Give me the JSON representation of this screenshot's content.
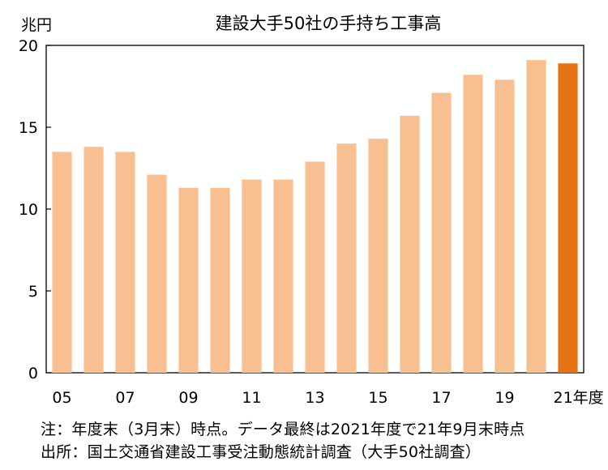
{
  "chart_data": {
    "type": "bar",
    "title": "建設大手50社の手持ち工事高",
    "unit_label": "兆円",
    "categories": [
      "05",
      "06",
      "07",
      "08",
      "09",
      "10",
      "11",
      "12",
      "13",
      "14",
      "15",
      "16",
      "17",
      "18",
      "19",
      "20",
      "21"
    ],
    "tick_labels": [
      "05",
      "07",
      "09",
      "11",
      "13",
      "15",
      "17",
      "19",
      "21年度"
    ],
    "tick_label_categories": [
      "05",
      "07",
      "09",
      "11",
      "13",
      "15",
      "17",
      "19",
      "21"
    ],
    "values": [
      13.5,
      13.8,
      13.5,
      12.1,
      11.3,
      11.3,
      11.8,
      11.8,
      12.9,
      14.0,
      14.3,
      15.7,
      17.1,
      18.2,
      17.9,
      19.1,
      18.9
    ],
    "highlight_index": 16,
    "ylim": [
      0,
      20
    ],
    "yticks": [
      0,
      5,
      10,
      15,
      20
    ],
    "grid": false,
    "colors": {
      "bar": "#F8C090",
      "highlight": "#E57313",
      "axis": "#000000"
    }
  },
  "notes": {
    "line1": "注：年度末（3月末）時点。データ最終は2021年度で21年9月末時点",
    "line2": "出所：国土交通省建設工事受注動態統計調査（大手50社調査）"
  }
}
